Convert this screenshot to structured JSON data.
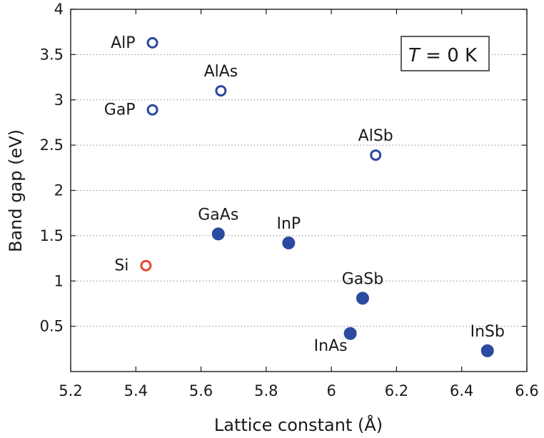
{
  "chart_data": {
    "type": "scatter",
    "xlabel": "Lattice constant (Å)",
    "ylabel": "Band gap (eV)",
    "xlim": [
      5.2,
      6.6
    ],
    "ylim": [
      0,
      4
    ],
    "xticks": [
      "5.2",
      "5.4",
      "5.6",
      "5.8",
      "6",
      "6.2",
      "6.4",
      "6.6"
    ],
    "yticks": [
      "0.5",
      "1",
      "1.5",
      "2",
      "2.5",
      "3",
      "3.5",
      "4"
    ],
    "ytick_values": [
      0.5,
      1,
      1.5,
      2,
      2.5,
      3,
      3.5,
      4
    ],
    "xtick_values": [
      5.2,
      5.4,
      5.6,
      5.8,
      6.0,
      6.2,
      6.4,
      6.6
    ],
    "grid": "horizontal dotted",
    "annotation": {
      "italic": "T",
      "rest": " = 0 K",
      "position": "top-right"
    },
    "colors": {
      "blue": "#2b4aa0",
      "red": "#e34a2f"
    },
    "points": [
      {
        "name": "AlP",
        "x": 5.451,
        "y": 3.63,
        "filled": false,
        "color": "blue",
        "label_side": "left"
      },
      {
        "name": "AlAs",
        "x": 5.661,
        "y": 3.1,
        "filled": false,
        "color": "blue",
        "label_side": "above"
      },
      {
        "name": "GaP",
        "x": 5.451,
        "y": 2.89,
        "filled": false,
        "color": "blue",
        "label_side": "left"
      },
      {
        "name": "AlSb",
        "x": 6.136,
        "y": 2.39,
        "filled": false,
        "color": "blue",
        "label_side": "above"
      },
      {
        "name": "GaAs",
        "x": 5.653,
        "y": 1.52,
        "filled": true,
        "color": "blue",
        "label_side": "above"
      },
      {
        "name": "InP",
        "x": 5.869,
        "y": 1.42,
        "filled": true,
        "color": "blue",
        "label_side": "above"
      },
      {
        "name": "Si",
        "x": 5.431,
        "y": 1.17,
        "filled": false,
        "color": "red",
        "label_side": "left"
      },
      {
        "name": "GaSb",
        "x": 6.096,
        "y": 0.81,
        "filled": true,
        "color": "blue",
        "label_side": "above"
      },
      {
        "name": "InAs",
        "x": 6.058,
        "y": 0.42,
        "filled": true,
        "color": "blue",
        "label_side": "below-left"
      },
      {
        "name": "InSb",
        "x": 6.479,
        "y": 0.23,
        "filled": true,
        "color": "blue",
        "label_side": "above"
      }
    ]
  }
}
